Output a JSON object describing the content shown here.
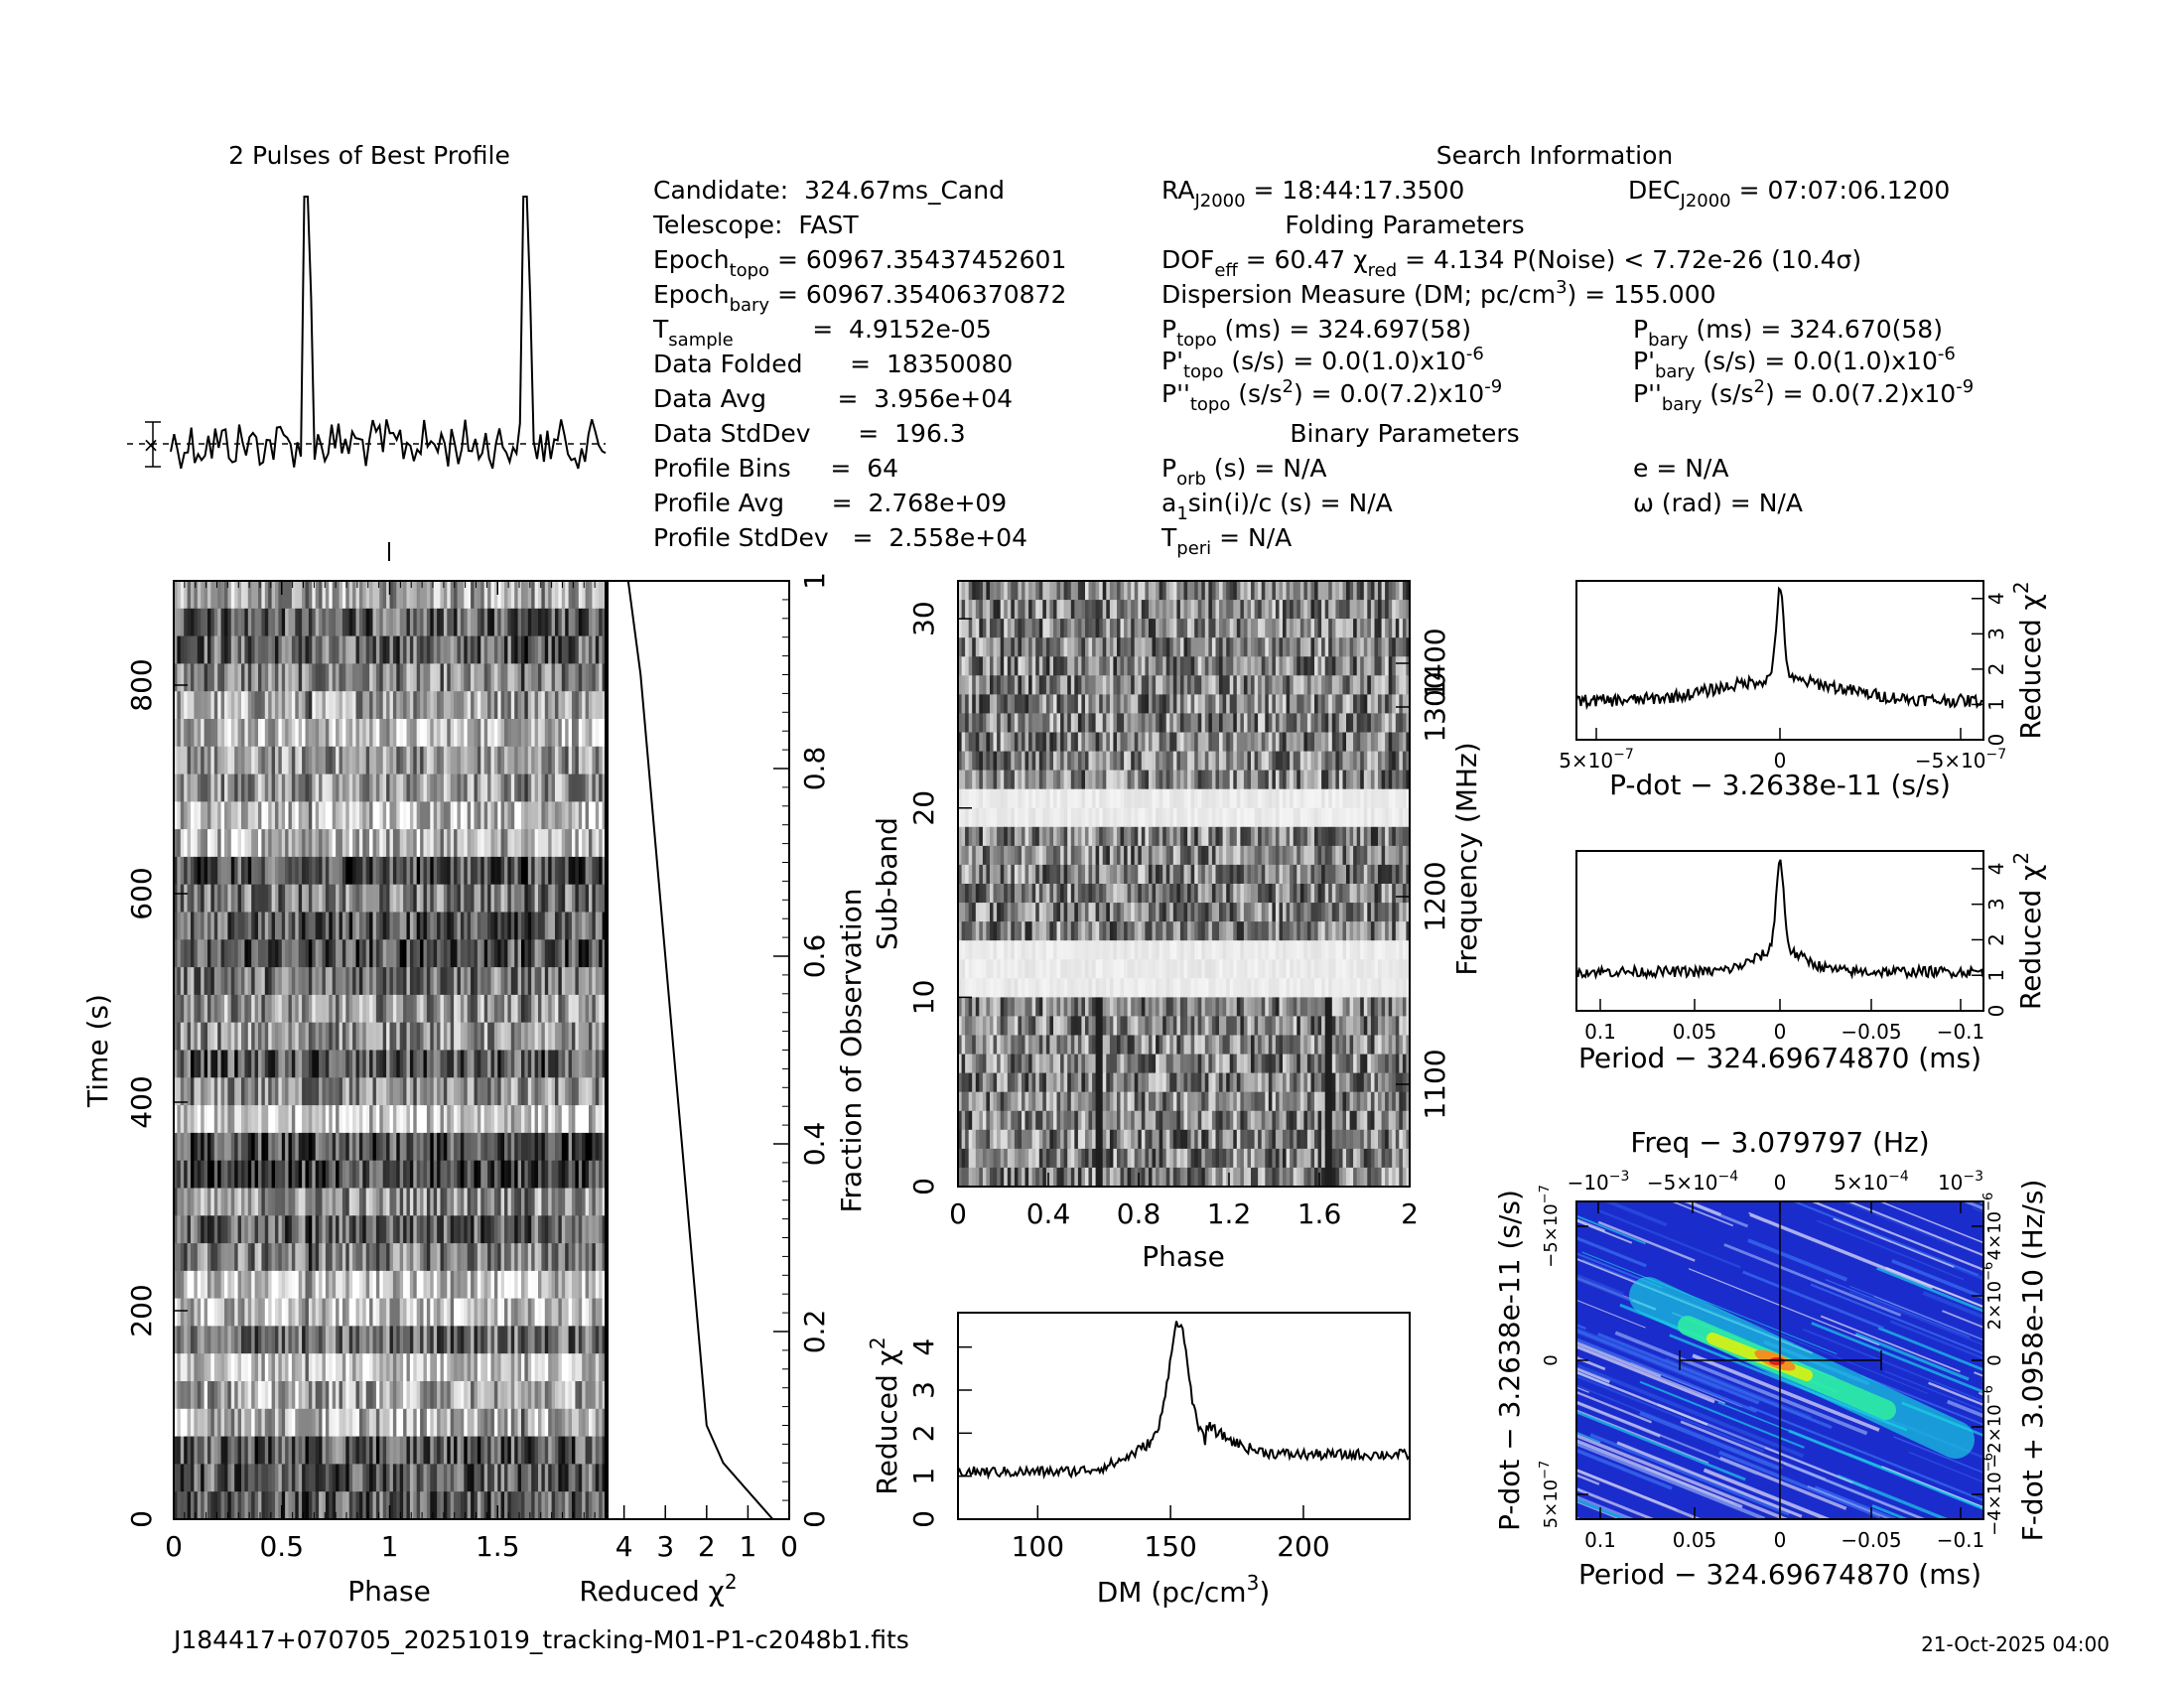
{
  "profile_title": "2 Pulses of Best Profile",
  "search_title": "Search Information",
  "folding_title": "Folding Parameters",
  "binary_title": "Binary Parameters",
  "info_col1": [
    [
      "Candidate:  324.67ms_Cand",
      ""
    ],
    [
      "Telescope:  FAST",
      ""
    ],
    [
      "Epoch",
      "topo",
      " = 60967.35437452601"
    ],
    [
      "Epoch",
      "bary",
      " = 60967.35406370872"
    ],
    [
      "T",
      "sample",
      "          =  4.9152e-05"
    ],
    [
      "Data Folded      =  18350080",
      "",
      ""
    ],
    [
      "Data Avg         =  3.956e+04",
      "",
      ""
    ],
    [
      "Data StdDev      =  196.3",
      "",
      ""
    ],
    [
      "Profile Bins     =  64",
      "",
      ""
    ],
    [
      "Profile Avg      =  2.768e+09",
      "",
      ""
    ],
    [
      "Profile StdDev   =  2.558e+04",
      "",
      ""
    ]
  ],
  "info": {
    "ra_label": "RA",
    "ra_sub": "J2000",
    "ra_value": " = 18:44:17.3500",
    "dec_label": "DEC",
    "dec_sub": "J2000",
    "dec_value": " = 07:07:06.1200",
    "dof": "DOF",
    "dof_sub": "eff",
    "dof_value": " = 60.47  χ",
    "chi_sub": "red",
    "chi_value": " = 4.134  P(Noise) < 7.72e-26  (10.4σ)",
    "dm_text": "Dispersion Measure (DM; pc/cm",
    "dm_value": ") = 155.000",
    "ptopo": "P",
    "ptopo_sub": "topo",
    "ptopo_value": " (ms) =  324.697(58)",
    "pbary": "P",
    "pbary_sub": "bary",
    "pbary_value": " (ms) =  324.670(58)",
    "pdtopo": "P'",
    "pdtopo_sub": "topo",
    "pdtopo_value": " (s/s) = 0.0(1.0)x10",
    "pdtopo_exp": "-6",
    "pdbary": "P'",
    "pdbary_sub": "bary",
    "pdbary_value": " (s/s) = 0.0(1.0)x10",
    "pdbary_exp": "-6",
    "pddtopo": "P''",
    "pddtopo_sub": "topo",
    "pddtopo_value": " (s/s",
    "pddtopo_value2": ") = 0.0(7.2)x10",
    "pddtopo_exp": "-9",
    "pddbary": "P''",
    "pddbary_sub": "bary",
    "pddbary_value": " (s/s",
    "pddbary_value2": ") = 0.0(7.2)x10",
    "pddbary_exp": "-9",
    "porb": "P",
    "porb_sub": "orb",
    "porb_value": " (s) = N/A",
    "a1": "a",
    "a1_sub": "1",
    "a1_value": "sin(i)/c (s) = N/A",
    "tperi": "T",
    "tperi_sub": "peri",
    "tperi_value": " = N/A",
    "e_value": "e = N/A",
    "omega_value": "ω (rad) = N/A"
  },
  "footer": {
    "filename": "J184417+070705_20251019_tracking-M01-P1-c2048b1.fits",
    "date": "21-Oct-2025 04:00"
  },
  "colors": {
    "line": "#000000"
  },
  "chart_data": [
    {
      "type": "line",
      "title": "2 Pulses of Best Profile",
      "x": "phase 0-2",
      "peaks_phase": [
        0.62,
        1.62
      ]
    },
    {
      "type": "heatmap",
      "xlabel": "Phase",
      "ylabel": "Time (s)",
      "xlim": [
        0,
        2
      ],
      "ylim": [
        0,
        900
      ],
      "xticks": [
        "0",
        "0.5",
        "1",
        "1.5"
      ],
      "yticks": [
        "0",
        "200",
        "400",
        "600",
        "800"
      ]
    },
    {
      "type": "line",
      "xlabel": "Reduced χ",
      "ylabel": "Fraction of Observation",
      "xticks": [
        "4",
        "3",
        "2",
        "1",
        "0"
      ],
      "yticks": [
        "0",
        "0.2",
        "0.4",
        "0.6",
        "0.8",
        "1"
      ],
      "chi": [
        0.4,
        1.0,
        1.6,
        2.0,
        2.2,
        2.4,
        2.6,
        2.8,
        3.0,
        3.2,
        3.4,
        3.6,
        3.9
      ],
      "frac": [
        0,
        0.03,
        0.06,
        0.1,
        0.2,
        0.3,
        0.4,
        0.5,
        0.6,
        0.7,
        0.8,
        0.9,
        1.0
      ]
    },
    {
      "type": "heatmap",
      "xlabel": "Phase",
      "ylabel": "Sub-band",
      "y2label": "Frequency (MHz)",
      "xticks": [
        "0",
        "0.4",
        "0.8",
        "1.2",
        "1.6",
        "2"
      ],
      "yticks": [
        "0",
        "10",
        "20",
        "30"
      ],
      "y2ticks": [
        "1100",
        "1200",
        "1300",
        "1400"
      ]
    },
    {
      "type": "line",
      "xlabel": "DM (pc/cm",
      "ylabel": "Reduced χ",
      "xticks": [
        "100",
        "150",
        "200"
      ],
      "yticks": [
        "0",
        "1",
        "2",
        "3",
        "4"
      ],
      "xlim": [
        70,
        240
      ],
      "ylim": [
        0,
        4.8
      ],
      "peak_dm": 153,
      "peak_chi": 4.4
    },
    {
      "type": "line",
      "xlabel": "P-dot − 3.2638e-11 (s/s)",
      "ylabel": "Reduced χ",
      "xticks": [
        "5×10",
        "0",
        "−5×10"
      ],
      "xtick_exp": "−7",
      "yticks": [
        "0",
        "1",
        "2",
        "3",
        "4"
      ]
    },
    {
      "type": "line",
      "xlabel": "Period − 324.69674870 (ms)",
      "ylabel": "Reduced χ",
      "xticks": [
        "0.1",
        "0.05",
        "0",
        "−0.05",
        "−0.1"
      ],
      "yticks": [
        "0",
        "1",
        "2",
        "3",
        "4"
      ]
    },
    {
      "type": "heatmap",
      "title": "Freq − 3.079797 (Hz)",
      "xlabel": "Period − 324.69674870 (ms)",
      "ylabel": "P-dot − 3.2638e-11 (s/s)",
      "y2label": "F-dot + 3.0958e-10 (Hz/s)",
      "xticks": [
        "0.1",
        "0.05",
        "0",
        "−0.05",
        "−0.1"
      ],
      "topticks": [
        "−10",
        "−5×10",
        "0",
        "5×10",
        "10"
      ],
      "topexps": [
        "−3",
        "−4",
        "",
        "−4",
        "−3"
      ],
      "yticks": [
        "−5×10",
        "0",
        "5×10"
      ],
      "ytick_exps": [
        "−7",
        "",
        "−7"
      ],
      "y2ticks": [
        "4×10",
        "2×10",
        "0",
        "−2×10",
        "−4×10"
      ],
      "y2exps": [
        "−6",
        "−6",
        "",
        "−6",
        "−6"
      ]
    }
  ]
}
